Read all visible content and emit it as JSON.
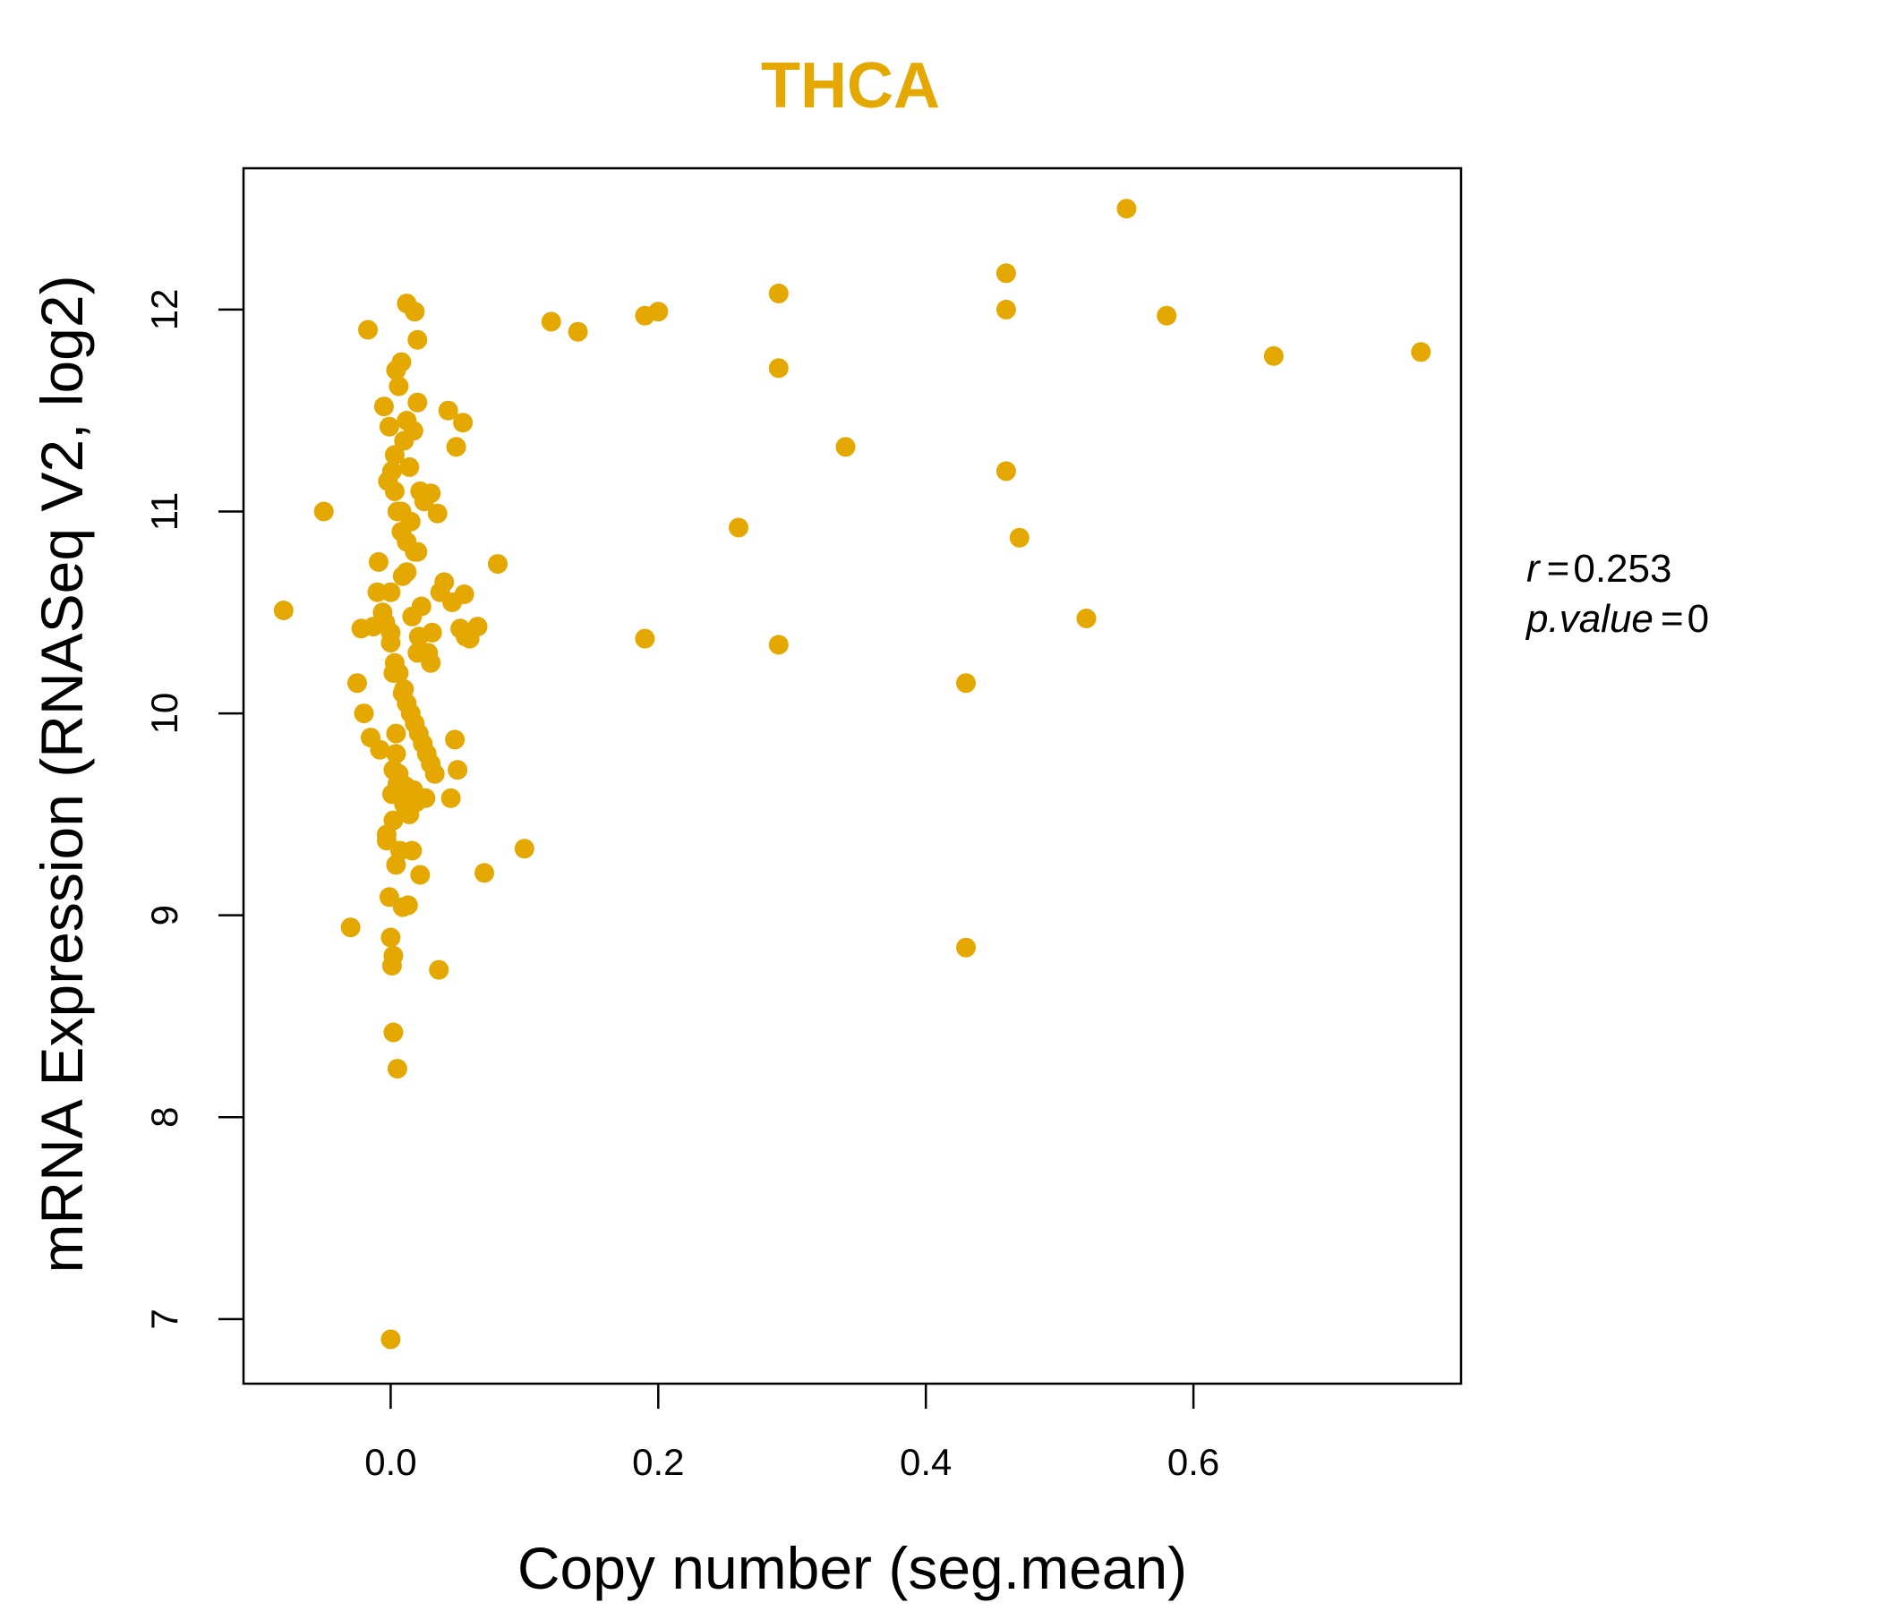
{
  "chart_data": {
    "type": "scatter",
    "title": "THCA",
    "xlabel": "Copy number (seg.mean)",
    "ylabel": "mRNA Expression (RNASeq V2, log2)",
    "xlim": [
      -0.11,
      0.8
    ],
    "ylim": [
      6.68,
      12.7
    ],
    "xticks": [
      "0.0",
      "0.2",
      "0.4",
      "0.6"
    ],
    "yticks": [
      "7",
      "8",
      "9",
      "10",
      "11",
      "12"
    ],
    "grid": false,
    "legend": "none",
    "colors": {
      "points": "#E5A800",
      "title": "#E5A800",
      "axes": "#000000"
    },
    "stats": {
      "r_symbol": "r",
      "r_value": "0.253",
      "p_symbol": "p.value",
      "p_value": "0"
    },
    "x": [
      0.55,
      0.46,
      0.29,
      0.46,
      0.2,
      0.19,
      0.58,
      0.12,
      0.14,
      0.66,
      0.77,
      0.29,
      0.34,
      0.46,
      0.26,
      0.47,
      0.52,
      0.19,
      0.29,
      0.43,
      0.43,
      0.1,
      0.08,
      0.07,
      -0.05,
      -0.08,
      -0.03,
      0.012,
      0.018,
      -0.017,
      0.02,
      0.008,
      0.004,
      0.02,
      0.043,
      0.054,
      0.049,
      -0.005,
      0.012,
      0.006,
      0.017,
      -0.001,
      0.01,
      0.003,
      0.014,
      0.022,
      0.025,
      0.03,
      -0.002,
      0.008,
      0.035,
      0.015,
      0.012,
      0.02,
      0.04,
      0.037,
      0.046,
      0.055,
      0.065,
      0.059,
      0.052,
      0.031,
      0.028,
      -0.013,
      -0.022,
      -0.025,
      -0.02,
      -0.015,
      -0.008,
      -0.009,
      -0.01,
      -0.006,
      -0.004,
      0.0,
      0.003,
      0.006,
      0.009,
      0.012,
      0.015,
      0.018,
      0.021,
      0.024,
      0.027,
      0.03,
      0.033,
      0.005,
      0.001,
      0.01,
      0.014,
      0.002,
      -0.003,
      -0.003,
      0.007,
      0.016,
      0.022,
      0.004,
      0.013,
      -0.001,
      0.009,
      0.017,
      0.026,
      0.019,
      0.011,
      0.006,
      0.002,
      0.004,
      0.01,
      0.02,
      0.03,
      0.048,
      0.05,
      0.056,
      0.045,
      0.012,
      0.018,
      0.008,
      0.005,
      0.003,
      0.001,
      0.0,
      0.0,
      0.002,
      0.004,
      0.036,
      0.021,
      0.016,
      0.023,
      0.009
    ],
    "y": [
      12.5,
      12.18,
      12.08,
      12.0,
      11.99,
      11.97,
      11.97,
      11.94,
      11.89,
      11.77,
      11.79,
      11.71,
      11.32,
      11.2,
      10.92,
      10.87,
      10.47,
      10.37,
      10.34,
      10.15,
      8.84,
      9.33,
      10.74,
      9.21,
      11.0,
      10.51,
      8.94,
      12.03,
      11.99,
      11.9,
      11.85,
      11.74,
      11.7,
      11.54,
      11.5,
      11.44,
      11.32,
      11.52,
      11.45,
      11.62,
      11.4,
      11.42,
      11.35,
      11.28,
      11.22,
      11.1,
      11.05,
      11.09,
      11.15,
      11.0,
      10.99,
      10.95,
      10.85,
      10.8,
      10.65,
      10.6,
      10.55,
      10.59,
      10.43,
      10.37,
      10.42,
      10.4,
      10.3,
      10.43,
      10.42,
      10.15,
      10.0,
      9.88,
      9.82,
      10.75,
      10.6,
      10.5,
      10.45,
      10.35,
      10.25,
      10.2,
      10.1,
      10.05,
      10.0,
      9.95,
      9.9,
      9.85,
      9.8,
      9.75,
      9.7,
      9.65,
      9.6,
      9.55,
      9.5,
      9.47,
      9.4,
      9.37,
      9.32,
      9.32,
      9.2,
      9.25,
      9.05,
      9.09,
      9.04,
      9.62,
      9.58,
      9.56,
      9.64,
      9.7,
      9.72,
      9.9,
      10.12,
      10.3,
      10.25,
      9.87,
      9.72,
      10.38,
      9.58,
      10.7,
      10.8,
      10.9,
      11.0,
      11.1,
      11.2,
      10.6,
      10.4,
      10.2,
      9.8,
      8.73,
      10.38,
      10.48,
      10.53,
      10.68
    ],
    "y_low_points": [
      {
        "x": 0.0,
        "y": 8.89
      },
      {
        "x": 0.002,
        "y": 8.8
      },
      {
        "x": 0.001,
        "y": 8.75
      },
      {
        "x": 0.002,
        "y": 8.42
      },
      {
        "x": 0.005,
        "y": 8.24
      },
      {
        "x": 0.0,
        "y": 6.9
      }
    ]
  }
}
